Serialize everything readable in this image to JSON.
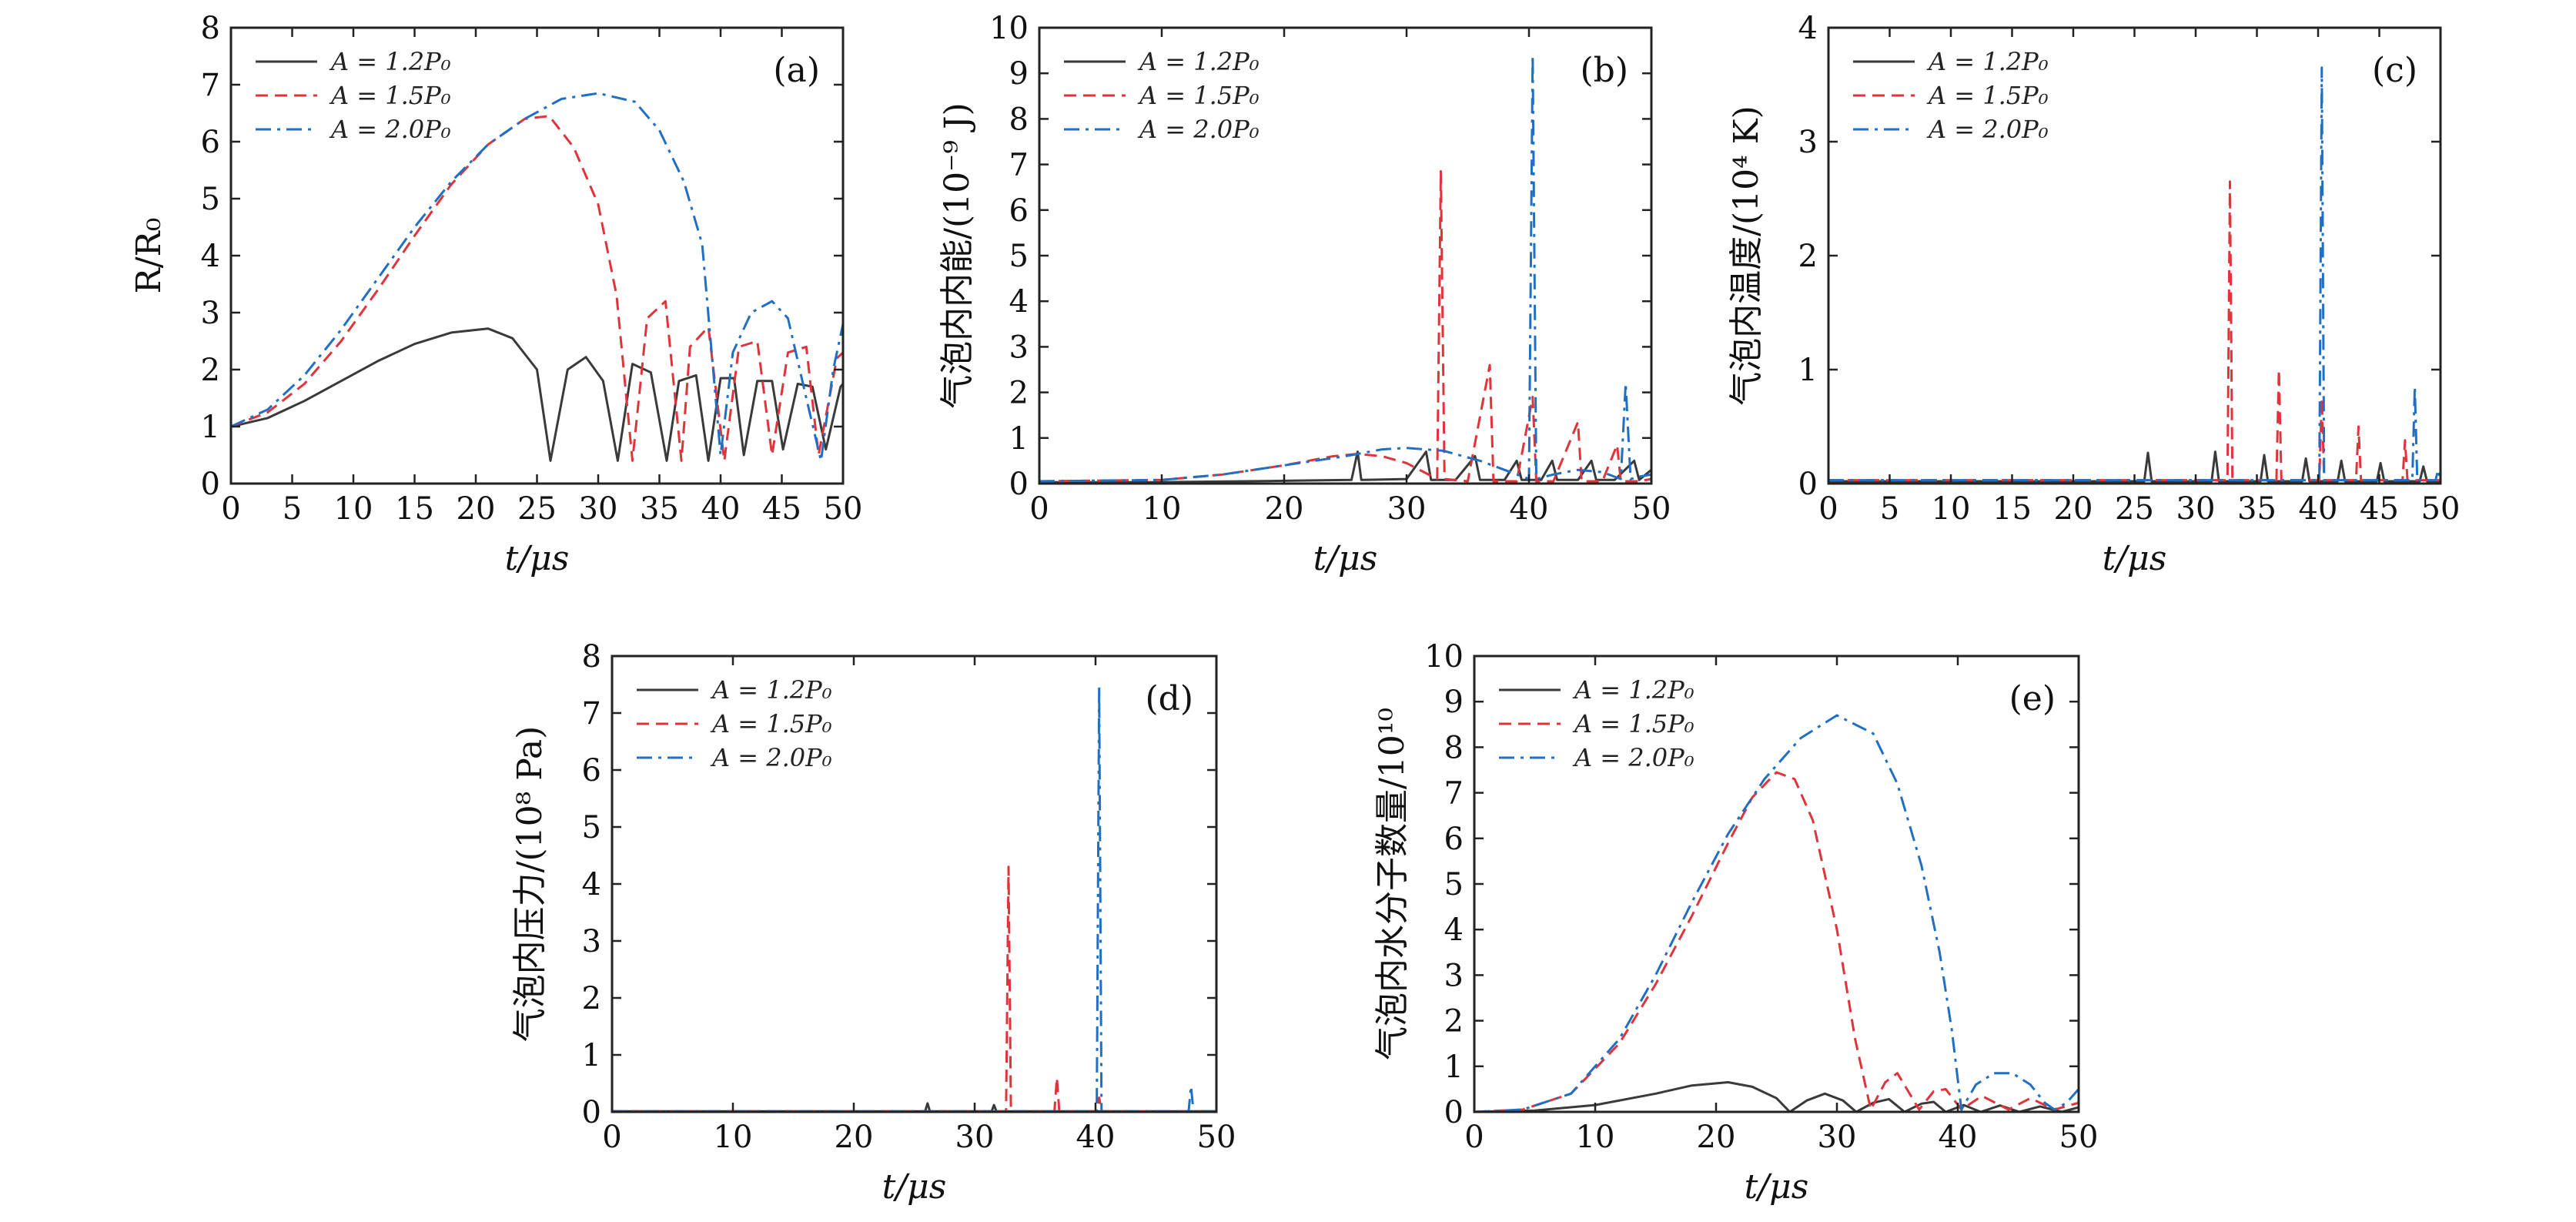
{
  "legend": [
    "A = 1.2P₀",
    "A = 1.5P₀",
    "A = 2.0P₀"
  ],
  "colors": {
    "s12": "#3a3a3a",
    "s15": "#e0343a",
    "s20": "#1f6fc4"
  },
  "chart_data": [
    {
      "type": "line",
      "panel_label": "(a)",
      "xlabel": "t/μs",
      "ylabel": "R/R₀",
      "xlim": [
        0,
        50
      ],
      "ylim": [
        0,
        8
      ],
      "xticks": [
        0,
        5,
        10,
        15,
        20,
        25,
        30,
        35,
        40,
        45,
        50
      ],
      "yticks": [
        0,
        1,
        2,
        3,
        4,
        5,
        6,
        7,
        8
      ],
      "legend_position": "top-left",
      "series": [
        {
          "name": "A = 1.2P₀",
          "style": "solid",
          "x": [
            0,
            3,
            6,
            9,
            12,
            15,
            18,
            21,
            23,
            25,
            26.1,
            27.5,
            29,
            30.4,
            31.6,
            32.8,
            34.3,
            35.6,
            36.6,
            38,
            39,
            40,
            41.1,
            41.9,
            43,
            44.2,
            45.1,
            46.3,
            47.5,
            48.6,
            49.8,
            50
          ],
          "y": [
            1,
            1.15,
            1.45,
            1.8,
            2.15,
            2.45,
            2.65,
            2.72,
            2.55,
            2.0,
            0.4,
            2.0,
            2.22,
            1.8,
            0.4,
            2.1,
            1.95,
            0.4,
            1.8,
            1.9,
            0.4,
            1.85,
            1.85,
            0.5,
            1.8,
            1.8,
            0.6,
            1.75,
            1.7,
            0.6,
            1.7,
            1.75
          ]
        },
        {
          "name": "A = 1.5P₀",
          "style": "dashed",
          "x": [
            0,
            3,
            6,
            9,
            12,
            15,
            18,
            21,
            24,
            26,
            28,
            30,
            31.5,
            32.8,
            34,
            35.5,
            36.8,
            37.5,
            39,
            40.3,
            41.5,
            43,
            44.2,
            45.5,
            47,
            48,
            49.5,
            50
          ],
          "y": [
            1,
            1.25,
            1.75,
            2.5,
            3.4,
            4.35,
            5.25,
            5.95,
            6.4,
            6.45,
            5.9,
            4.9,
            3.3,
            0.4,
            2.9,
            3.2,
            0.4,
            2.4,
            2.75,
            0.4,
            2.4,
            2.5,
            0.5,
            2.3,
            2.4,
            0.5,
            2.2,
            2.3
          ]
        },
        {
          "name": "A = 2.0P₀",
          "style": "dashdot",
          "x": [
            0,
            3,
            6,
            9,
            12,
            15,
            18,
            21,
            24,
            27,
            30,
            33,
            35,
            37,
            38.5,
            40,
            41,
            42.5,
            44.2,
            45.5,
            47,
            48.2,
            49.2,
            50
          ],
          "y": [
            1,
            1.3,
            1.9,
            2.7,
            3.6,
            4.5,
            5.3,
            5.95,
            6.4,
            6.75,
            6.85,
            6.7,
            6.2,
            5.3,
            4.2,
            0.5,
            2.3,
            3.0,
            3.2,
            2.9,
            1.5,
            0.4,
            2.0,
            2.8
          ]
        }
      ]
    },
    {
      "type": "line",
      "panel_label": "(b)",
      "xlabel": "t/μs",
      "ylabel": "气泡内内能/(10⁻⁹ J)",
      "xlim": [
        0,
        50
      ],
      "ylim": [
        0,
        10
      ],
      "xticks": [
        0,
        10,
        20,
        30,
        40,
        50
      ],
      "yticks": [
        0,
        1,
        2,
        3,
        4,
        5,
        6,
        7,
        8,
        9,
        10
      ],
      "legend_position": "top-left",
      "series": [
        {
          "name": "A = 1.2P₀",
          "style": "solid",
          "x": [
            0,
            10,
            20,
            25.5,
            26,
            26.3,
            30,
            31.6,
            32,
            34,
            35.6,
            36,
            38,
            39,
            39.4,
            41,
            41.9,
            42.3,
            44,
            45.1,
            45.5,
            47,
            48.6,
            49,
            50
          ],
          "y": [
            0.03,
            0.03,
            0.06,
            0.08,
            0.7,
            0.08,
            0.1,
            0.7,
            0.08,
            0.08,
            0.6,
            0.08,
            0.08,
            0.5,
            0.08,
            0.08,
            0.5,
            0.08,
            0.08,
            0.5,
            0.08,
            0.08,
            0.5,
            0.08,
            0.3
          ]
        },
        {
          "name": "A = 1.5P₀",
          "style": "dashed",
          "x": [
            0,
            10,
            15,
            20,
            24,
            26,
            28,
            30,
            32.5,
            32.8,
            33.1,
            35,
            36.8,
            37.1,
            39,
            40.3,
            40.6,
            42,
            44,
            44.3,
            46,
            47.2,
            47.5,
            49,
            50
          ],
          "y": [
            0.05,
            0.08,
            0.2,
            0.4,
            0.6,
            0.65,
            0.6,
            0.45,
            0.1,
            6.85,
            0.1,
            0.05,
            2.6,
            0.05,
            0.05,
            1.9,
            0.05,
            0.05,
            1.35,
            0.05,
            0.05,
            0.85,
            0.05,
            0.05,
            0.1
          ]
        },
        {
          "name": "A = 2.0P₀",
          "style": "dashdot",
          "x": [
            0,
            10,
            15,
            20,
            25,
            28,
            30,
            33,
            36,
            38,
            40,
            40.3,
            40.6,
            42,
            44,
            46,
            47.5,
            47.9,
            48.3,
            49,
            50
          ],
          "y": [
            0.05,
            0.08,
            0.2,
            0.4,
            0.6,
            0.75,
            0.78,
            0.72,
            0.5,
            0.3,
            0.1,
            9.4,
            0.1,
            0.2,
            0.3,
            0.25,
            0.1,
            2.2,
            0.1,
            0.15,
            0.2
          ]
        }
      ]
    },
    {
      "type": "line",
      "panel_label": "(c)",
      "xlabel": "t/μs",
      "ylabel": "气泡内温度/(10⁴ K)",
      "xlim": [
        0,
        50
      ],
      "ylim": [
        0,
        4
      ],
      "xticks": [
        0,
        5,
        10,
        15,
        20,
        25,
        30,
        35,
        40,
        45,
        50
      ],
      "yticks": [
        0,
        1,
        2,
        3,
        4
      ],
      "legend_position": "top-left",
      "series": [
        {
          "name": "A = 1.2P₀",
          "style": "solid",
          "x": [
            0,
            25.8,
            26.1,
            26.4,
            31.3,
            31.6,
            31.9,
            35.3,
            35.6,
            35.9,
            38.7,
            39,
            39.3,
            41.6,
            41.9,
            42.2,
            44.8,
            45.1,
            45.4,
            48.3,
            48.6,
            48.9,
            50
          ],
          "y": [
            0.02,
            0.02,
            0.27,
            0.02,
            0.02,
            0.28,
            0.02,
            0.02,
            0.25,
            0.02,
            0.02,
            0.22,
            0.02,
            0.02,
            0.2,
            0.02,
            0.02,
            0.18,
            0.02,
            0.02,
            0.15,
            0.02,
            0.02
          ]
        },
        {
          "name": "A = 1.5P₀",
          "style": "dashed",
          "x": [
            0,
            32.6,
            32.8,
            33,
            36.6,
            36.8,
            37,
            40.1,
            40.3,
            40.5,
            43.1,
            43.3,
            43.5,
            46.9,
            47.1,
            47.3,
            50
          ],
          "y": [
            0.03,
            0.03,
            2.65,
            0.03,
            0.03,
            1.0,
            0.03,
            0.03,
            0.75,
            0.03,
            0.03,
            0.5,
            0.03,
            0.03,
            0.38,
            0.03,
            0.03
          ]
        },
        {
          "name": "A = 2.0P₀",
          "style": "dashdot",
          "x": [
            0,
            40.1,
            40.3,
            40.5,
            47.7,
            47.9,
            48.1,
            49.6,
            49.8,
            50
          ],
          "y": [
            0.03,
            0.03,
            3.65,
            0.03,
            0.03,
            0.85,
            0.03,
            0.03,
            0.12,
            0.03
          ]
        }
      ]
    },
    {
      "type": "line",
      "panel_label": "(d)",
      "xlabel": "t/μs",
      "ylabel": "气泡内压力/(10⁸ Pa)",
      "xlim": [
        0,
        50
      ],
      "ylim": [
        0,
        8
      ],
      "xticks": [
        0,
        10,
        20,
        30,
        40,
        50
      ],
      "yticks": [
        0,
        1,
        2,
        3,
        4,
        5,
        6,
        7,
        8
      ],
      "legend_position": "top-left",
      "series": [
        {
          "name": "A = 1.2P₀",
          "style": "solid",
          "x": [
            0,
            25.9,
            26.1,
            26.3,
            31.4,
            31.6,
            31.8,
            50
          ],
          "y": [
            0.01,
            0.01,
            0.15,
            0.01,
            0.01,
            0.12,
            0.01,
            0.01
          ]
        },
        {
          "name": "A = 1.5P₀",
          "style": "dashed",
          "x": [
            0,
            32.6,
            32.8,
            33,
            36.6,
            36.8,
            37,
            40.1,
            40.3,
            40.5,
            50
          ],
          "y": [
            0.01,
            0.01,
            4.3,
            0.01,
            0.01,
            0.6,
            0.01,
            0.01,
            0.25,
            0.01,
            0.01
          ]
        },
        {
          "name": "A = 2.0P₀",
          "style": "dashdot",
          "x": [
            0,
            40.1,
            40.3,
            40.5,
            47.7,
            47.9,
            48.1,
            50
          ],
          "y": [
            0.01,
            0.01,
            7.45,
            0.01,
            0.01,
            0.45,
            0.01,
            0.01
          ]
        }
      ]
    },
    {
      "type": "line",
      "panel_label": "(e)",
      "xlabel": "t/μs",
      "ylabel": "气泡内水分子数量/10¹⁰",
      "xlim": [
        0,
        50
      ],
      "ylim": [
        0,
        10
      ],
      "xticks": [
        0,
        10,
        20,
        30,
        40,
        50
      ],
      "yticks": [
        0,
        1,
        2,
        3,
        4,
        5,
        6,
        7,
        8,
        9,
        10
      ],
      "legend_position": "top-left",
      "series": [
        {
          "name": "A = 1.2P₀",
          "style": "solid",
          "x": [
            0,
            5,
            10,
            15,
            18,
            21,
            23,
            25,
            26.1,
            27.5,
            29,
            30.5,
            31.6,
            33,
            34.3,
            35.6,
            37,
            38,
            39,
            40.5,
            41.9,
            43.5,
            45.1,
            46.8,
            48.6,
            50
          ],
          "y": [
            0,
            0.03,
            0.15,
            0.4,
            0.58,
            0.65,
            0.55,
            0.3,
            0,
            0.25,
            0.4,
            0.25,
            0,
            0.2,
            0.28,
            0,
            0.18,
            0.22,
            0,
            0.15,
            0,
            0.14,
            0,
            0.12,
            0,
            0.1
          ]
        },
        {
          "name": "A = 1.5P₀",
          "style": "dashed",
          "x": [
            0,
            4,
            8,
            12,
            15,
            18,
            21,
            23,
            25,
            26.5,
            28,
            30,
            31.5,
            32.8,
            34,
            35,
            36.8,
            38,
            39,
            40.3,
            42,
            44.2,
            46,
            48,
            50
          ],
          "y": [
            0,
            0.05,
            0.4,
            1.5,
            2.8,
            4.3,
            5.9,
            6.9,
            7.45,
            7.3,
            6.4,
            4.0,
            1.6,
            0.05,
            0.65,
            0.85,
            0.05,
            0.45,
            0.5,
            0.05,
            0.35,
            0.05,
            0.3,
            0.05,
            0.2
          ]
        },
        {
          "name": "A = 2.0P₀",
          "style": "dashdot",
          "x": [
            0,
            4,
            8,
            12,
            15,
            18,
            21,
            24,
            27,
            30,
            33,
            35,
            37,
            38.5,
            39.5,
            40.3,
            41.5,
            43,
            44.5,
            46,
            47.2,
            48,
            49,
            50
          ],
          "y": [
            0,
            0.05,
            0.4,
            1.6,
            3.0,
            4.6,
            6.1,
            7.3,
            8.2,
            8.7,
            8.3,
            7.2,
            5.4,
            3.5,
            1.8,
            0.05,
            0.6,
            0.85,
            0.85,
            0.6,
            0.2,
            0.05,
            0.2,
            0.5
          ]
        }
      ]
    }
  ]
}
